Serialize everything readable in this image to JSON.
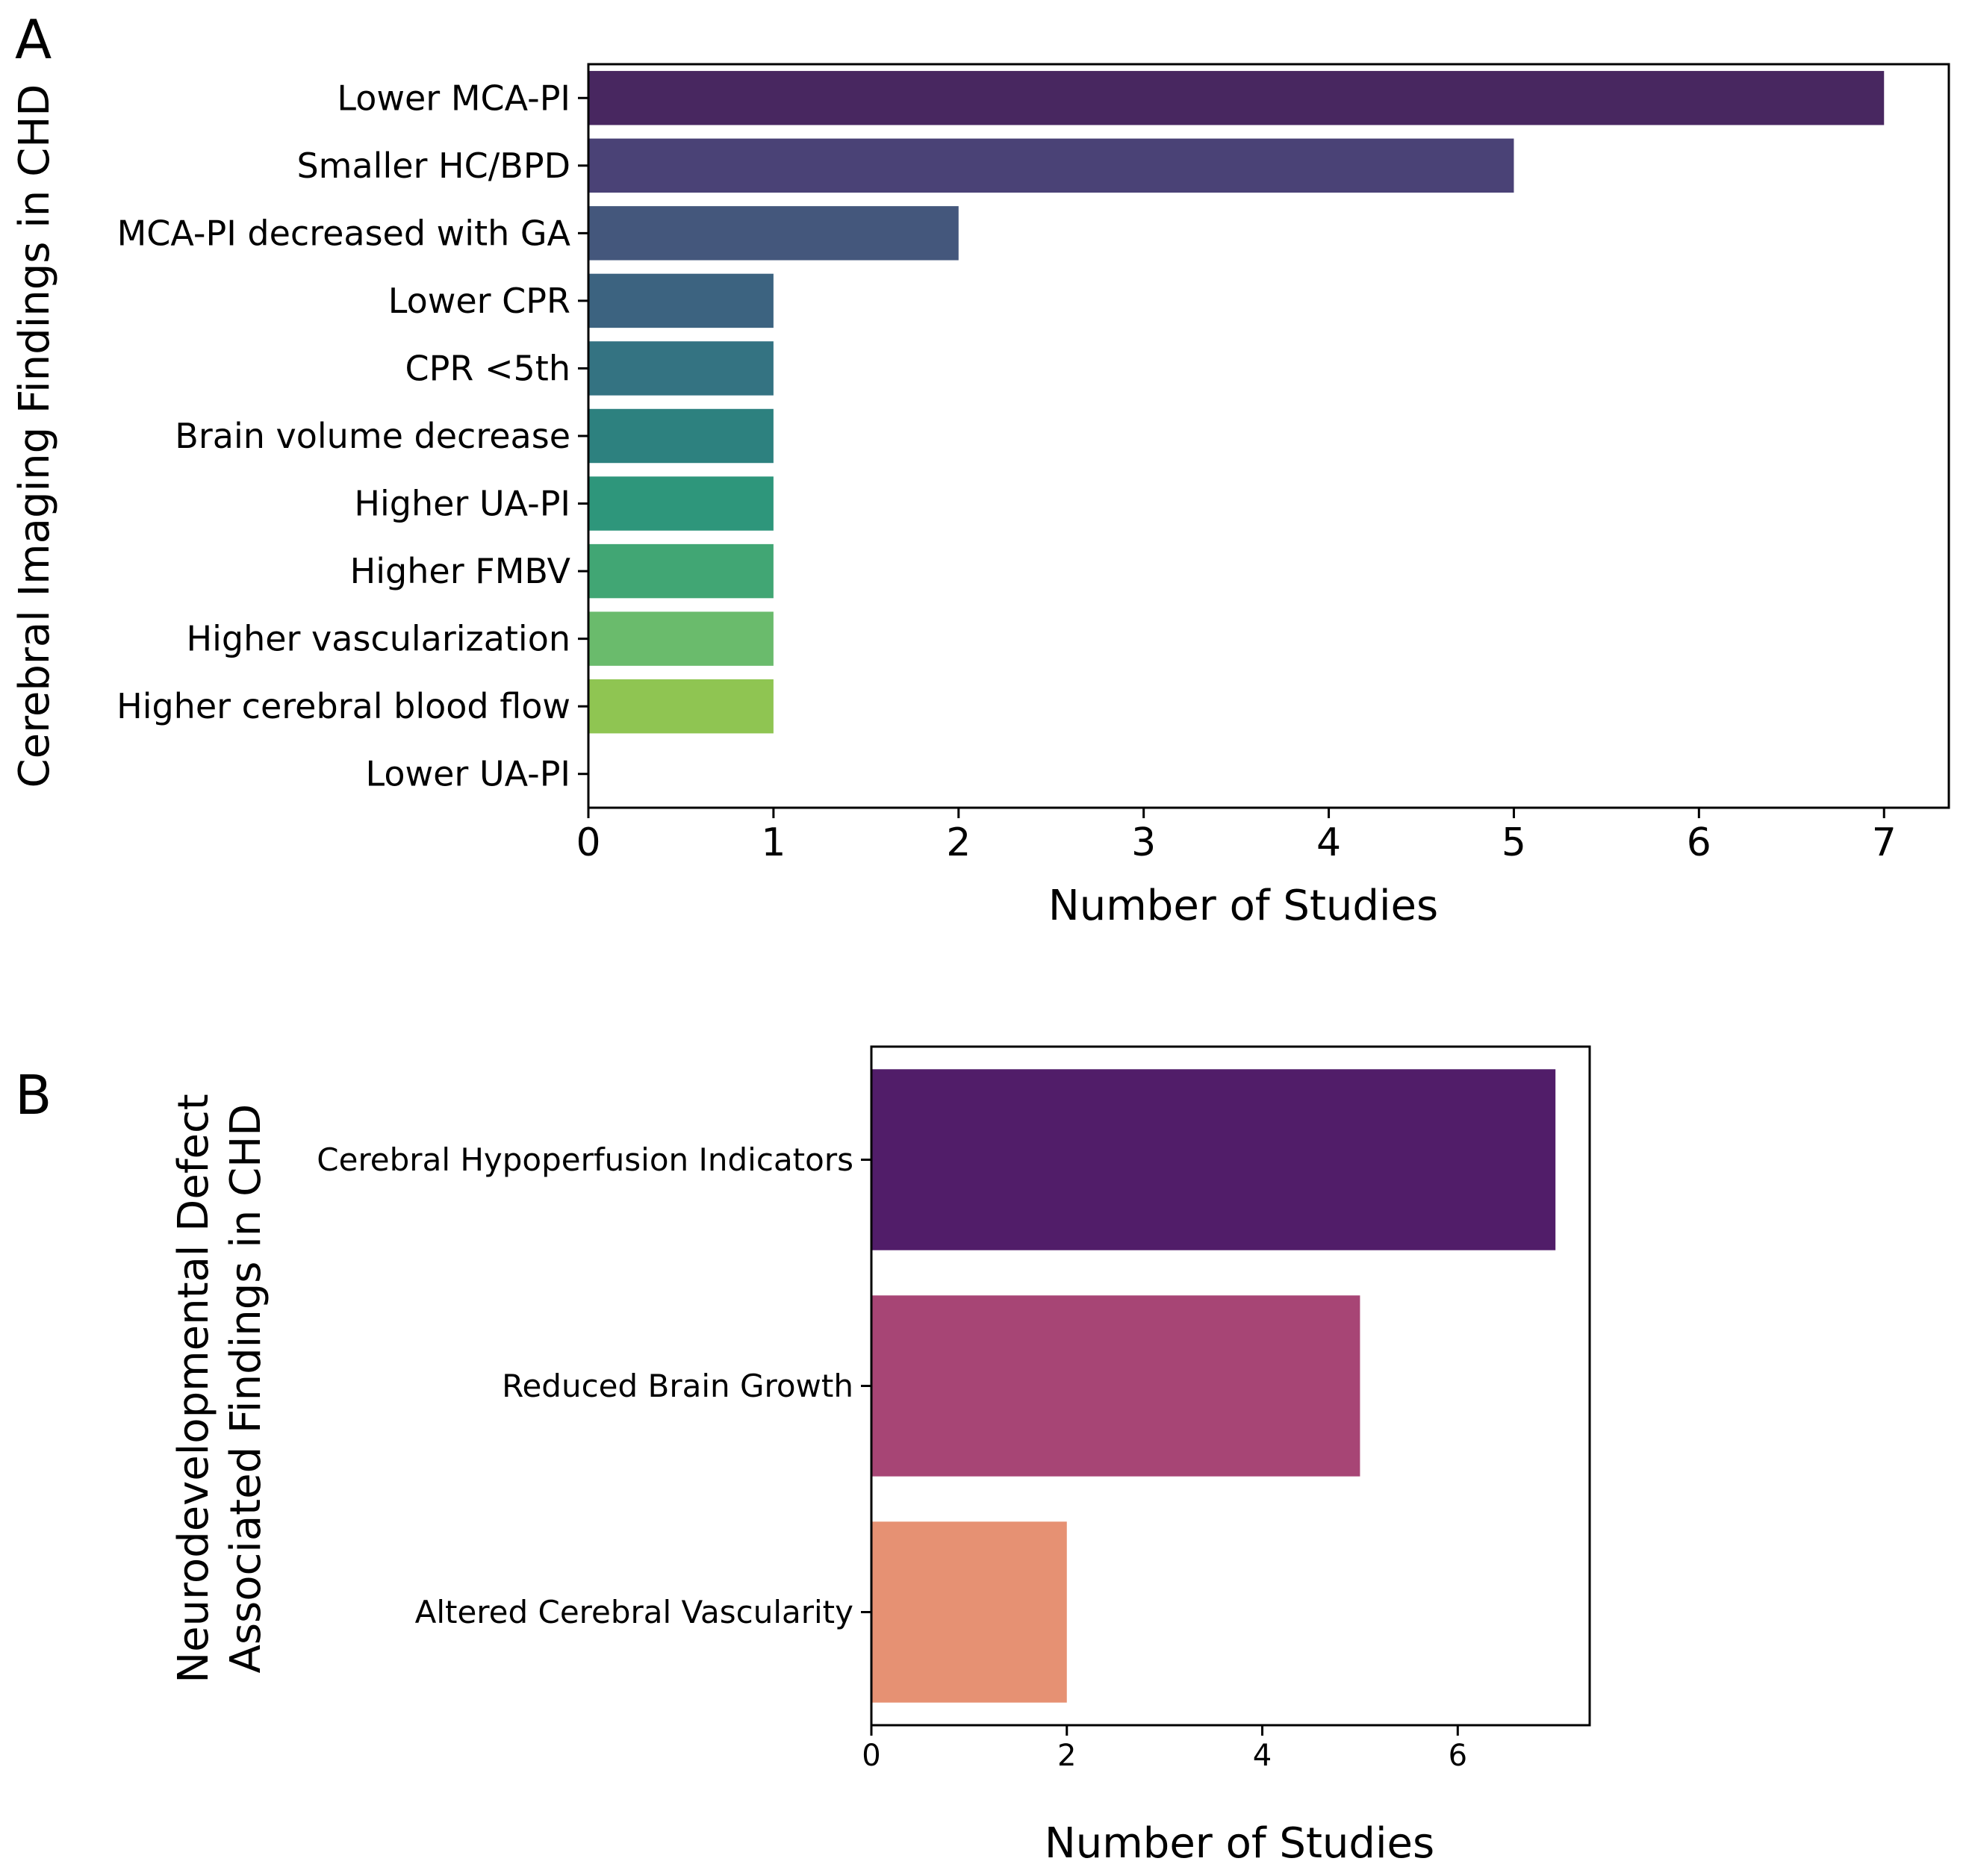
{
  "chart_data": [
    {
      "type": "bar",
      "orientation": "horizontal",
      "panel": "A",
      "categories": [
        "Lower MCA-PI",
        "Smaller HC/BPD",
        "MCA-PI decreased with GA",
        "Lower CPR",
        "CPR <5th",
        "Brain volume decrease",
        "Higher UA-PI",
        "Higher FMBV",
        "Higher vascularization",
        "Higher cerebral blood flow",
        "Lower UA-PI"
      ],
      "values": [
        7,
        5,
        2,
        1,
        1,
        1,
        1,
        1,
        1,
        1,
        0
      ],
      "colors": [
        "#482760",
        "#4a4276",
        "#44577c",
        "#3c6380",
        "#347382",
        "#2d817f",
        "#2e967b",
        "#41a674",
        "#6abb6c",
        "#8fc552",
        "#c6dd40"
      ],
      "xlabel": "Number of Studies",
      "ylabel": "Cerebral Imaging Findings in CHD",
      "xticks": [
        "0",
        "1",
        "2",
        "3",
        "4",
        "5",
        "6",
        "7"
      ],
      "xlim": [
        0,
        7.35
      ],
      "grid": false
    },
    {
      "type": "bar",
      "orientation": "horizontal",
      "panel": "B",
      "categories": [
        "Cerebral Hypoperfusion Indicators",
        "Reduced Brain Growth",
        "Altered Cerebral Vascularity"
      ],
      "values": [
        7,
        5,
        2
      ],
      "colors": [
        "#511d69",
        "#a74575",
        "#e69173"
      ],
      "xlabel": "Number of Studies",
      "ylabel_lines": [
        "Neurodevelopmental Defect",
        "Associated Findings in CHD"
      ],
      "xticks": [
        "0",
        "2",
        "4",
        "6"
      ],
      "xlim": [
        0,
        7.35
      ],
      "grid": false
    }
  ]
}
